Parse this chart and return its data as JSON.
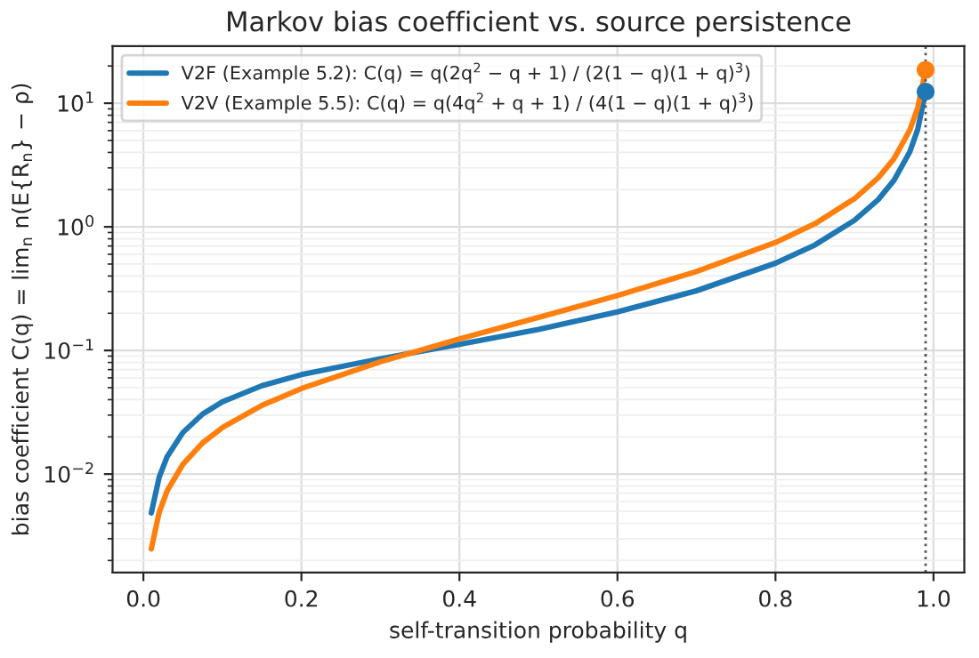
{
  "chart_data": {
    "type": "line",
    "title": "Markov bias coefficient vs. source persistence",
    "xlabel": "self-transition probability q",
    "ylabel": "bias coefficient C(q) = lim$_{n}$ n(E{R$_{n}$} − ρ)",
    "series": [
      {
        "name": "V2F (Example 5.2): C(q) = q(2q$^{2}$ − q + 1) / (2(1 − q)(1 + q)$^{3}$)",
        "color": "#1f77b4",
        "x": [
          0.01,
          0.02,
          0.03,
          0.05,
          0.075,
          0.1,
          0.15,
          0.2,
          0.3,
          0.4,
          0.5,
          0.6,
          0.7,
          0.8,
          0.85,
          0.9,
          0.93,
          0.95,
          0.97,
          0.98,
          0.99
        ],
        "values": [
          0.00485,
          0.00943,
          0.0138,
          0.0217,
          0.0306,
          0.0384,
          0.0519,
          0.0637,
          0.0858,
          0.112,
          0.148,
          0.205,
          0.304,
          0.508,
          0.714,
          1.13,
          1.66,
          2.38,
          4.04,
          6.13,
          12.4
        ]
      },
      {
        "name": "V2V (Example 5.5): C(q) = q(4q$^{2}$ + q + 1) / (4(1 − q)(1 + q)$^{3}$)",
        "color": "#ff7f0e",
        "x": [
          0.01,
          0.02,
          0.03,
          0.05,
          0.075,
          0.1,
          0.15,
          0.2,
          0.3,
          0.4,
          0.5,
          0.6,
          0.7,
          0.8,
          0.85,
          0.9,
          0.93,
          0.95,
          0.97,
          0.98,
          0.99
        ],
        "values": [
          0.00248,
          0.00491,
          0.00731,
          0.012,
          0.0179,
          0.0238,
          0.036,
          0.0492,
          0.081,
          0.124,
          0.185,
          0.278,
          0.435,
          0.748,
          1.06,
          1.69,
          2.49,
          3.56,
          6.06,
          9.19,
          18.6
        ]
      },
      {
        "type": "scatter",
        "color": "#1f77b4",
        "x": [
          0.99
        ],
        "values": [
          12.4
        ]
      },
      {
        "type": "scatter",
        "color": "#ff7f0e",
        "x": [
          0.99
        ],
        "values": [
          18.6
        ]
      }
    ],
    "ref_lines": [
      {
        "axis": "x",
        "value": 0.99,
        "color": "#555555",
        "line_style": "dotted"
      }
    ],
    "log": "y",
    "xlim": [
      -0.039,
      1.039
    ],
    "ylim": [
      0.0016,
      29
    ],
    "xticks": [
      {
        "value": 0,
        "label": "0.0"
      },
      0.2,
      0.4,
      0.6,
      0.8,
      {
        "value": 1,
        "label": "1.0"
      }
    ],
    "yticks": [
      {
        "value": 0.01,
        "label": "10$^{−2}$"
      },
      {
        "value": 0.1,
        "label": "10$^{−1}$"
      },
      {
        "value": 1,
        "label": "10$^{0}$"
      },
      {
        "value": 10,
        "label": "10$^{1}$"
      }
    ],
    "grid": true,
    "legend": "top left"
  }
}
